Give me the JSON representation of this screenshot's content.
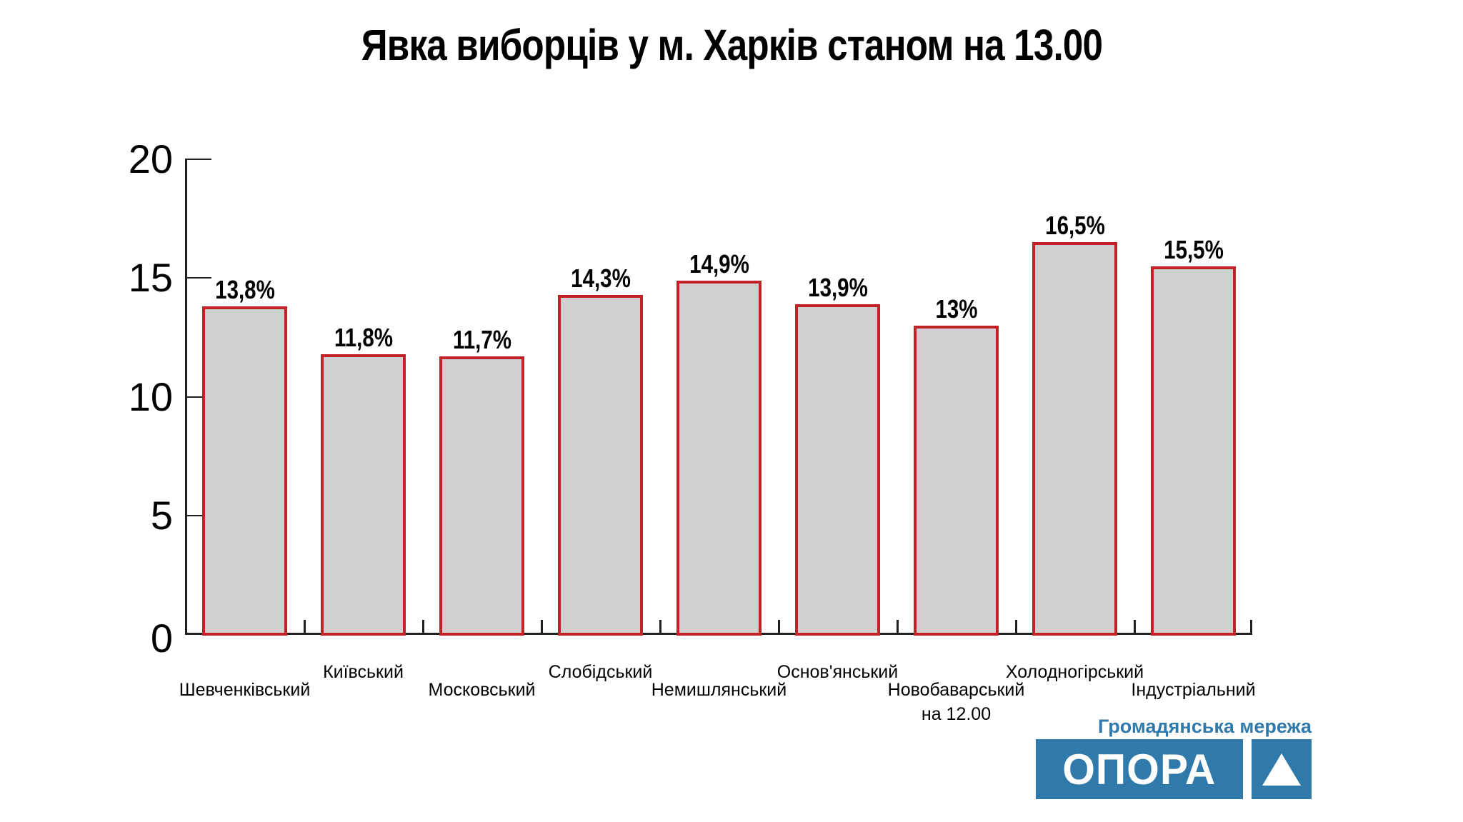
{
  "title": "Явка виборців у м. Харків станом на 13.00",
  "chart_data": {
    "type": "bar",
    "title": "Явка виборців у м. Харків станом на 13.00",
    "categories": [
      {
        "label": "Шевченківський"
      },
      {
        "label": "Київський"
      },
      {
        "label": "Московський"
      },
      {
        "label": "Слобідський"
      },
      {
        "label": "Немишлянський"
      },
      {
        "label": "Основ'янський"
      },
      {
        "label": "Новобаварський",
        "sublabel": "на 12.00"
      },
      {
        "label": "Холодногірський"
      },
      {
        "label": "Індустріальний"
      }
    ],
    "values": [
      13.8,
      11.8,
      11.7,
      14.3,
      14.9,
      13.9,
      13,
      16.5,
      15.5
    ],
    "value_labels": [
      "13,8%",
      "11,8%",
      "11,7%",
      "14,3%",
      "14,9%",
      "13,9%",
      "13%",
      "16,5%",
      "15,5%"
    ],
    "xlabel": "",
    "ylabel": "",
    "ylim": [
      0,
      20
    ],
    "yticks": [
      0,
      5,
      10,
      15,
      20
    ],
    "grid": false,
    "legend": false,
    "bar_fill": "#d0d0d0",
    "bar_border": "#c32128"
  },
  "footer": {
    "network_label": "Громадянська мережа",
    "org_name": "ОПОРА",
    "brand_blue": "#2f7aab"
  }
}
